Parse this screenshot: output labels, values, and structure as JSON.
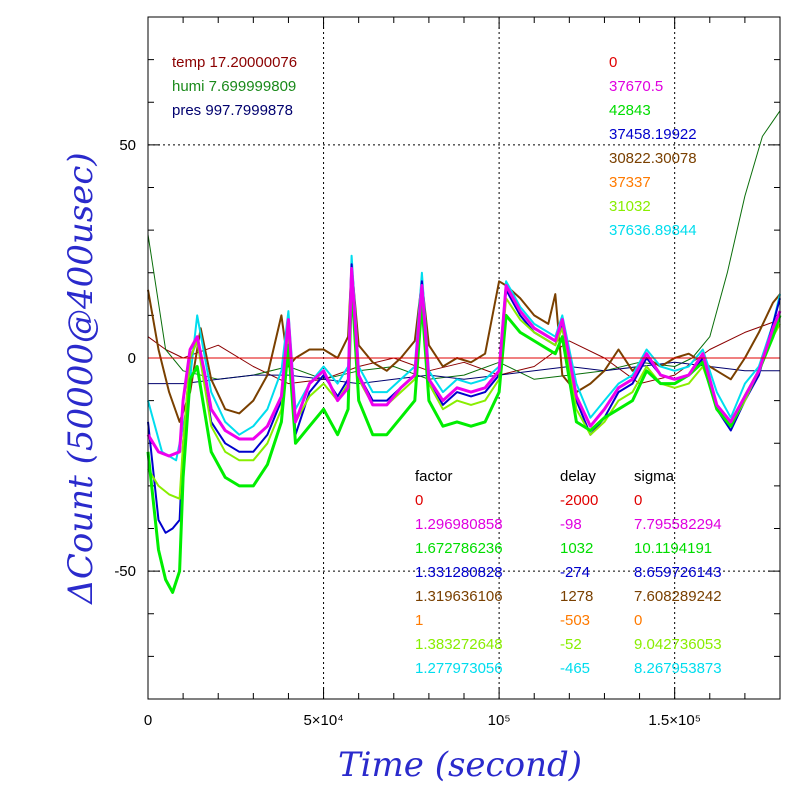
{
  "chart_data": {
    "type": "line",
    "title": "",
    "xlabel": "Time (second)",
    "ylabel": "ΔCount (50000@400usec)",
    "xlim": [
      0,
      180000
    ],
    "ylim": [
      -80,
      80
    ],
    "grid": true,
    "x_ticks": [
      {
        "value": 0,
        "label": "0"
      },
      {
        "value": 50000,
        "label": "5×10⁴"
      },
      {
        "value": 100000,
        "label": "10⁵"
      },
      {
        "value": 150000,
        "label": "1.5×10⁵"
      }
    ],
    "y_ticks": [
      {
        "value": -50,
        "label": "-50"
      },
      {
        "value": 0,
        "label": "0"
      },
      {
        "value": 50,
        "label": "50"
      }
    ],
    "env_legend": [
      {
        "text": "temp 17.20000076",
        "color": "#8b0000"
      },
      {
        "text": "humi 7.699999809",
        "color": "#1a8a1a"
      },
      {
        "text": "pres 997.7999878",
        "color": "#00006e"
      }
    ],
    "offsets": [
      {
        "text": "0",
        "color": "#e00000"
      },
      {
        "text": "37670.5",
        "color": "#e000e0"
      },
      {
        "text": "42843",
        "color": "#00dd00"
      },
      {
        "text": "37458.19922",
        "color": "#0000cc"
      },
      {
        "text": "30822.30078",
        "color": "#7a4000"
      },
      {
        "text": "37337",
        "color": "#ff7a00"
      },
      {
        "text": "31032",
        "color": "#88ee00"
      },
      {
        "text": "37636.89844",
        "color": "#00ddee"
      }
    ],
    "table": {
      "headers": [
        "factor",
        "delay",
        "sigma"
      ],
      "rows": [
        {
          "factor": "0",
          "delay": "-2000",
          "sigma": "0",
          "color": "#e00000"
        },
        {
          "factor": "1.296980858",
          "delay": "-98",
          "sigma": "7.795582294",
          "color": "#e000e0"
        },
        {
          "factor": "1.672786236",
          "delay": "1032",
          "sigma": "10.1194191",
          "color": "#00dd00"
        },
        {
          "factor": "1.331280828",
          "delay": "-274",
          "sigma": "8.659726143",
          "color": "#0000cc"
        },
        {
          "factor": "1.319636106",
          "delay": "1278",
          "sigma": "7.608289242",
          "color": "#7a4000"
        },
        {
          "factor": "1",
          "delay": "-503",
          "sigma": "0",
          "color": "#ff7a00"
        },
        {
          "factor": "1.383272648",
          "delay": "-52",
          "sigma": "9.042736053",
          "color": "#88ee00"
        },
        {
          "factor": "1.277973056",
          "delay": "-465",
          "sigma": "8.267953873",
          "color": "#00ddee"
        }
      ]
    },
    "series": [
      {
        "color": "#8b0000",
        "width": 1,
        "x": [
          0,
          5000,
          10000,
          20000,
          30000,
          40000,
          50000,
          60000,
          70000,
          80000,
          90000,
          100000,
          110000,
          120000,
          130000,
          140000,
          150000,
          160000,
          170000,
          180000
        ],
        "y": [
          5,
          2,
          0,
          3,
          -2,
          -6,
          -5,
          -2,
          0,
          -3,
          -1,
          -4,
          -2,
          4,
          0,
          -6,
          -4,
          2,
          6,
          9
        ]
      },
      {
        "color": "#0a6e0a",
        "width": 1,
        "x": [
          0,
          5000,
          10000,
          20000,
          30000,
          40000,
          50000,
          60000,
          70000,
          80000,
          90000,
          100000,
          110000,
          120000,
          130000,
          140000,
          150000,
          155000,
          160000,
          165000,
          170000,
          175000,
          180000
        ],
        "y": [
          29,
          2,
          -3,
          -5,
          -4,
          -2,
          -5,
          -3,
          -2,
          -5,
          -4,
          -1,
          -5,
          -4,
          -3,
          -1,
          -2,
          0,
          5,
          20,
          38,
          52,
          58
        ]
      },
      {
        "color": "#00006e",
        "width": 1,
        "x": [
          0,
          10000,
          20000,
          30000,
          40000,
          50000,
          60000,
          70000,
          80000,
          90000,
          100000,
          110000,
          120000,
          130000,
          140000,
          150000,
          160000,
          170000,
          180000
        ],
        "y": [
          -6,
          -6,
          -5,
          -4,
          -4,
          -5,
          -6,
          -5,
          -4,
          -5,
          -4,
          -3,
          -2,
          -3,
          -2,
          -1,
          -2,
          -3,
          -3
        ]
      },
      {
        "color": "#7a4000",
        "width": 2,
        "x": [
          0,
          3000,
          6000,
          9000,
          12000,
          15000,
          18000,
          22000,
          26000,
          30000,
          34000,
          38000,
          40000,
          42000,
          46000,
          50000,
          54000,
          57000,
          58000,
          60000,
          64000,
          68000,
          72000,
          76000,
          78000,
          80000,
          84000,
          88000,
          92000,
          96000,
          100000,
          102000,
          106000,
          110000,
          114000,
          116000,
          118000,
          122000,
          126000,
          130000,
          134000,
          138000,
          142000,
          146000,
          150000,
          154000,
          158000,
          162000,
          166000,
          170000,
          174000,
          178000,
          180000
        ],
        "y": [
          16,
          2,
          -8,
          -15,
          -8,
          7,
          -5,
          -12,
          -13,
          -10,
          -4,
          10,
          -2,
          0,
          2,
          2,
          0,
          5,
          22,
          3,
          -1,
          -3,
          0,
          4,
          18,
          3,
          -2,
          0,
          -1,
          1,
          18,
          17,
          14,
          10,
          8,
          15,
          -4,
          -8,
          -6,
          -3,
          2,
          -3,
          0,
          -2,
          0,
          1,
          -1,
          -3,
          -5,
          0,
          6,
          13,
          15
        ]
      },
      {
        "color": "#00ddee",
        "width": 2,
        "x": [
          0,
          4000,
          8000,
          11000,
          14000,
          18000,
          22000,
          26000,
          30000,
          34000,
          38000,
          40000,
          42000,
          46000,
          50000,
          54000,
          57000,
          58000,
          60000,
          64000,
          68000,
          72000,
          76000,
          78000,
          80000,
          84000,
          88000,
          92000,
          96000,
          100000,
          102000,
          106000,
          110000,
          114000,
          116000,
          118000,
          122000,
          126000,
          130000,
          134000,
          138000,
          142000,
          146000,
          150000,
          154000,
          158000,
          162000,
          166000,
          170000,
          174000,
          178000,
          180000
        ],
        "y": [
          -10,
          -22,
          -24,
          -12,
          10,
          -8,
          -15,
          -18,
          -16,
          -12,
          -3,
          11,
          -12,
          -6,
          -2,
          -6,
          -2,
          24,
          -2,
          -8,
          -8,
          -5,
          -2,
          20,
          -3,
          -8,
          -5,
          -6,
          -5,
          -2,
          18,
          12,
          8,
          6,
          5,
          10,
          -6,
          -14,
          -10,
          -6,
          -4,
          2,
          -2,
          -3,
          -2,
          2,
          -8,
          -14,
          -6,
          -2,
          8,
          15
        ]
      },
      {
        "color": "#0000cc",
        "width": 2,
        "x": [
          0,
          3000,
          5000,
          7000,
          9000,
          10000,
          12000,
          14000,
          16000,
          18000,
          22000,
          26000,
          30000,
          34000,
          38000,
          40000,
          42000,
          46000,
          50000,
          54000,
          57000,
          58000,
          60000,
          64000,
          68000,
          72000,
          76000,
          78000,
          80000,
          84000,
          88000,
          92000,
          96000,
          100000,
          102000,
          106000,
          110000,
          114000,
          116000,
          118000,
          122000,
          126000,
          130000,
          134000,
          138000,
          142000,
          146000,
          150000,
          154000,
          158000,
          162000,
          166000,
          170000,
          174000,
          178000,
          180000
        ],
        "y": [
          -15,
          -38,
          -41,
          -40,
          -38,
          -20,
          0,
          4,
          -5,
          -15,
          -20,
          -22,
          -22,
          -18,
          -10,
          8,
          -18,
          -8,
          -4,
          -9,
          -5,
          22,
          -4,
          -10,
          -10,
          -7,
          -4,
          18,
          -5,
          -11,
          -8,
          -9,
          -8,
          -4,
          16,
          10,
          6,
          4,
          3,
          8,
          -10,
          -18,
          -14,
          -8,
          -6,
          0,
          -4,
          -5,
          -4,
          0,
          -12,
          -17,
          -10,
          -4,
          8,
          14
        ]
      },
      {
        "color": "#88ee00",
        "width": 2,
        "x": [
          0,
          3000,
          6000,
          9000,
          10000,
          12000,
          14000,
          16000,
          18000,
          22000,
          26000,
          30000,
          34000,
          38000,
          40000,
          42000,
          46000,
          50000,
          54000,
          57000,
          58000,
          60000,
          64000,
          68000,
          72000,
          76000,
          78000,
          80000,
          84000,
          88000,
          92000,
          96000,
          100000,
          102000,
          106000,
          110000,
          114000,
          116000,
          118000,
          122000,
          126000,
          130000,
          134000,
          138000,
          142000,
          146000,
          150000,
          154000,
          158000,
          162000,
          166000,
          170000,
          174000,
          178000,
          180000
        ],
        "y": [
          -26,
          -30,
          -32,
          -33,
          -20,
          0,
          4,
          -6,
          -16,
          -22,
          -24,
          -24,
          -20,
          -12,
          5,
          -15,
          -9,
          -6,
          -10,
          -6,
          20,
          -5,
          -11,
          -11,
          -8,
          -5,
          15,
          -6,
          -12,
          -10,
          -11,
          -10,
          -5,
          14,
          9,
          6,
          4,
          3,
          7,
          -12,
          -18,
          -15,
          -10,
          -8,
          -2,
          -6,
          -7,
          -6,
          -2,
          -11,
          -16,
          -10,
          -3,
          5,
          8
        ]
      },
      {
        "color": "#00ee00",
        "width": 3,
        "x": [
          0,
          3000,
          5000,
          7000,
          9000,
          10000,
          12000,
          14000,
          16000,
          18000,
          22000,
          26000,
          30000,
          34000,
          38000,
          40000,
          42000,
          46000,
          50000,
          54000,
          57000,
          58000,
          60000,
          64000,
          68000,
          72000,
          76000,
          78000,
          80000,
          84000,
          88000,
          92000,
          96000,
          100000,
          102000,
          106000,
          110000,
          114000,
          116000,
          118000,
          122000,
          126000,
          130000,
          134000,
          138000,
          142000,
          146000,
          150000,
          154000,
          158000,
          162000,
          166000,
          170000,
          174000,
          178000,
          180000
        ],
        "y": [
          -22,
          -45,
          -52,
          -55,
          -50,
          -28,
          -5,
          -2,
          -12,
          -22,
          -28,
          -30,
          -30,
          -25,
          -15,
          3,
          -20,
          -16,
          -12,
          -18,
          -12,
          18,
          -10,
          -18,
          -18,
          -14,
          -10,
          13,
          -10,
          -16,
          -15,
          -16,
          -15,
          -8,
          10,
          6,
          4,
          2,
          1,
          5,
          -15,
          -17,
          -14,
          -12,
          -10,
          -3,
          -6,
          -6,
          -4,
          -1,
          -12,
          -16,
          -9,
          -3,
          5,
          10
        ]
      },
      {
        "color": "#ee00ee",
        "width": 3,
        "x": [
          0,
          3000,
          6000,
          9000,
          10000,
          12000,
          14000,
          16000,
          18000,
          22000,
          26000,
          30000,
          34000,
          38000,
          40000,
          42000,
          46000,
          50000,
          54000,
          57000,
          58000,
          60000,
          64000,
          68000,
          72000,
          76000,
          78000,
          80000,
          84000,
          88000,
          92000,
          96000,
          100000,
          102000,
          106000,
          110000,
          114000,
          116000,
          118000,
          122000,
          126000,
          130000,
          134000,
          138000,
          142000,
          146000,
          150000,
          154000,
          158000,
          162000,
          166000,
          170000,
          174000,
          178000,
          180000
        ],
        "y": [
          -18,
          -22,
          -23,
          -22,
          -10,
          2,
          5,
          -3,
          -12,
          -17,
          -19,
          -19,
          -16,
          -9,
          9,
          -15,
          -6,
          -3,
          -10,
          -7,
          21,
          -4,
          -11,
          -11,
          -7,
          -4,
          17,
          -5,
          -10,
          -7,
          -8,
          -7,
          -3,
          17,
          11,
          7,
          5,
          4,
          9,
          -9,
          -16,
          -12,
          -7,
          -5,
          1,
          -4,
          -5,
          -4,
          1,
          -11,
          -15,
          -9,
          -3,
          7,
          11
        ]
      }
    ]
  }
}
